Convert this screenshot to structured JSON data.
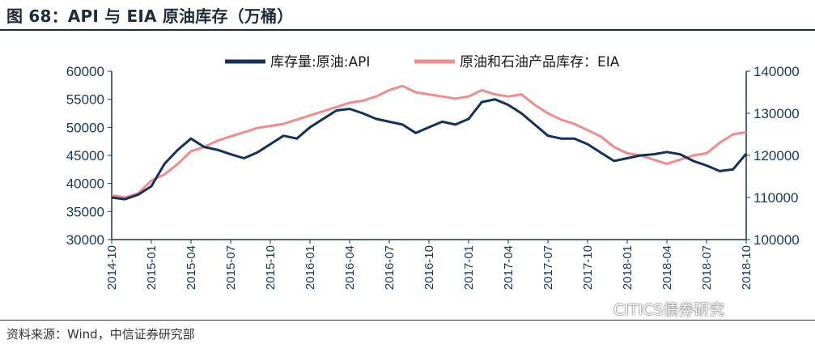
{
  "title": "图 68：API 与 EIA 原油库存（万桶）",
  "source": "资料来源：Wind，中信证券研究部",
  "watermark": "CITICS债券研究",
  "colors": {
    "api": "#13315c",
    "eia": "#f28b8b",
    "axis": "#16375f",
    "title": "#1f2a3a"
  },
  "chart_data": {
    "type": "line",
    "x": [
      "2014-10",
      "2014-11",
      "2014-12",
      "2015-01",
      "2015-02",
      "2015-03",
      "2015-04",
      "2015-05",
      "2015-06",
      "2015-07",
      "2015-08",
      "2015-09",
      "2015-10",
      "2015-11",
      "2015-12",
      "2016-01",
      "2016-02",
      "2016-03",
      "2016-04",
      "2016-05",
      "2016-06",
      "2016-07",
      "2016-08",
      "2016-09",
      "2016-10",
      "2016-11",
      "2016-12",
      "2017-01",
      "2017-02",
      "2017-03",
      "2017-04",
      "2017-05",
      "2017-06",
      "2017-07",
      "2017-08",
      "2017-09",
      "2017-10",
      "2017-11",
      "2017-12",
      "2018-01",
      "2018-02",
      "2018-03",
      "2018-04",
      "2018-05",
      "2018-06",
      "2018-07",
      "2018-08",
      "2018-09",
      "2018-10"
    ],
    "x_tick_labels": [
      "2014-10",
      "2015-01",
      "2015-04",
      "2015-07",
      "2015-10",
      "2016-01",
      "2016-04",
      "2016-07",
      "2016-10",
      "2017-01",
      "2017-04",
      "2017-07",
      "2017-10",
      "2018-01",
      "2018-04",
      "2018-07",
      "2018-10"
    ],
    "y_left": {
      "min": 30000,
      "max": 60000,
      "ticks": [
        "30000",
        "35000",
        "40000",
        "45000",
        "50000",
        "55000",
        "60000"
      ]
    },
    "y_right": {
      "min": 100000,
      "max": 140000,
      "ticks": [
        "100000",
        "110000",
        "120000",
        "130000",
        "140000"
      ]
    },
    "legend_position": "top",
    "grid": false,
    "series": [
      {
        "name": "库存量:原油:API",
        "axis": "left",
        "values": [
          37500,
          37200,
          38000,
          39500,
          43500,
          46000,
          48000,
          46500,
          46000,
          45200,
          44500,
          45500,
          47000,
          48500,
          48000,
          50000,
          51500,
          53000,
          53300,
          52500,
          51500,
          51000,
          50500,
          49000,
          50000,
          51000,
          50500,
          51500,
          54500,
          55000,
          54000,
          52500,
          50500,
          48500,
          48000,
          48000,
          47000,
          45500,
          44000,
          44500,
          45000,
          45200,
          45600,
          45200,
          44000,
          43200,
          42200,
          42500,
          45300
        ]
      },
      {
        "name": "原油和石油产品库存：EIA",
        "axis": "right",
        "values": [
          110500,
          110000,
          111000,
          114000,
          115500,
          118000,
          121000,
          122000,
          123500,
          124500,
          125500,
          126500,
          127000,
          127500,
          128500,
          129500,
          130500,
          131500,
          132500,
          133000,
          134000,
          135500,
          136500,
          135000,
          134500,
          134000,
          133500,
          134000,
          135500,
          134500,
          134000,
          134500,
          132000,
          130000,
          128500,
          127500,
          126000,
          124500,
          122000,
          120500,
          120000,
          119000,
          118000,
          119000,
          120000,
          120500,
          123000,
          125000,
          125500
        ]
      }
    ]
  }
}
